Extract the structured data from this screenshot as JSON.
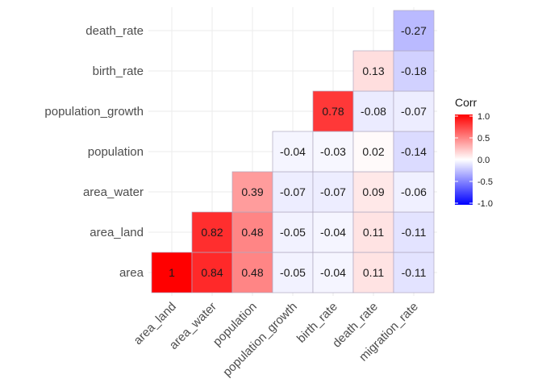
{
  "chart_data": {
    "type": "heatmap",
    "x_labels": [
      "area_land",
      "area_water",
      "population",
      "population_growth",
      "birth_rate",
      "death_rate",
      "migration_rate"
    ],
    "y_labels": [
      "area",
      "area_land",
      "area_water",
      "population",
      "population_growth",
      "birth_rate",
      "death_rate"
    ],
    "cells": [
      {
        "x": "area_land",
        "y": "area",
        "value": 1,
        "label": "1"
      },
      {
        "x": "area_water",
        "y": "area",
        "value": 0.84,
        "label": "0.84"
      },
      {
        "x": "population",
        "y": "area",
        "value": 0.48,
        "label": "0.48"
      },
      {
        "x": "population_growth",
        "y": "area",
        "value": -0.05,
        "label": "-0.05"
      },
      {
        "x": "birth_rate",
        "y": "area",
        "value": -0.04,
        "label": "-0.04"
      },
      {
        "x": "death_rate",
        "y": "area",
        "value": 0.11,
        "label": "0.11"
      },
      {
        "x": "migration_rate",
        "y": "area",
        "value": -0.11,
        "label": "-0.11"
      },
      {
        "x": "area_water",
        "y": "area_land",
        "value": 0.82,
        "label": "0.82"
      },
      {
        "x": "population",
        "y": "area_land",
        "value": 0.48,
        "label": "0.48"
      },
      {
        "x": "population_growth",
        "y": "area_land",
        "value": -0.05,
        "label": "-0.05"
      },
      {
        "x": "birth_rate",
        "y": "area_land",
        "value": -0.04,
        "label": "-0.04"
      },
      {
        "x": "death_rate",
        "y": "area_land",
        "value": 0.11,
        "label": "0.11"
      },
      {
        "x": "migration_rate",
        "y": "area_land",
        "value": -0.11,
        "label": "-0.11"
      },
      {
        "x": "population",
        "y": "area_water",
        "value": 0.39,
        "label": "0.39"
      },
      {
        "x": "population_growth",
        "y": "area_water",
        "value": -0.07,
        "label": "-0.07"
      },
      {
        "x": "birth_rate",
        "y": "area_water",
        "value": -0.07,
        "label": "-0.07"
      },
      {
        "x": "death_rate",
        "y": "area_water",
        "value": 0.09,
        "label": "0.09"
      },
      {
        "x": "migration_rate",
        "y": "area_water",
        "value": -0.06,
        "label": "-0.06"
      },
      {
        "x": "population_growth",
        "y": "population",
        "value": -0.04,
        "label": "-0.04"
      },
      {
        "x": "birth_rate",
        "y": "population",
        "value": -0.03,
        "label": "-0.03"
      },
      {
        "x": "death_rate",
        "y": "population",
        "value": 0.02,
        "label": "0.02"
      },
      {
        "x": "migration_rate",
        "y": "population",
        "value": -0.14,
        "label": "-0.14"
      },
      {
        "x": "birth_rate",
        "y": "population_growth",
        "value": 0.78,
        "label": "0.78"
      },
      {
        "x": "death_rate",
        "y": "population_growth",
        "value": -0.08,
        "label": "-0.08"
      },
      {
        "x": "migration_rate",
        "y": "population_growth",
        "value": -0.07,
        "label": "-0.07"
      },
      {
        "x": "death_rate",
        "y": "birth_rate",
        "value": 0.13,
        "label": "0.13"
      },
      {
        "x": "migration_rate",
        "y": "birth_rate",
        "value": -0.18,
        "label": "-0.18"
      },
      {
        "x": "migration_rate",
        "y": "death_rate",
        "value": -0.27,
        "label": "-0.27"
      }
    ],
    "legend": {
      "title": "Corr",
      "min": -1.0,
      "max": 1.0,
      "ticks": [
        {
          "value": 1.0,
          "label": "1.0"
        },
        {
          "value": 0.5,
          "label": "0.5"
        },
        {
          "value": 0.0,
          "label": "0.0"
        },
        {
          "value": -0.5,
          "label": "-0.5"
        },
        {
          "value": -1.0,
          "label": "-1.0"
        }
      ],
      "placement": "right"
    },
    "colors": {
      "low": "#0000ff",
      "mid": "#ffffff",
      "high": "#ff0000",
      "cell_border": "#b0a8c0",
      "grid": "#ebebeb"
    },
    "grid": true
  }
}
